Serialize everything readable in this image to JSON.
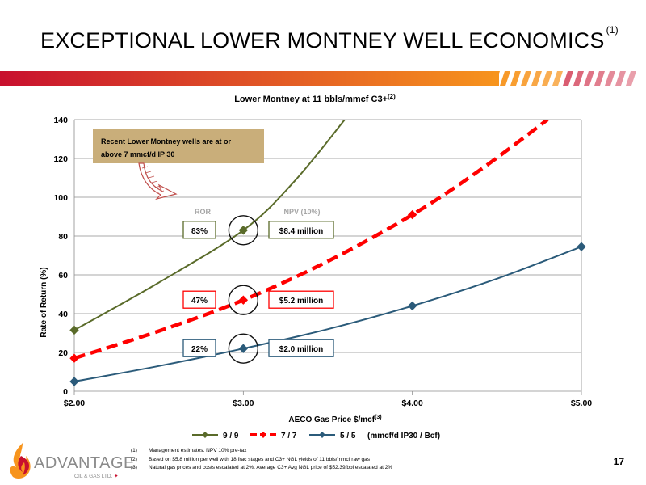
{
  "slide": {
    "title": "EXCEPTIONAL LOWER MONTNEY WELL ECONOMICS",
    "title_ref": "(1)",
    "page_number": "17"
  },
  "logo": {
    "name": "ADVANTAGE",
    "subtitle": "OIL & GAS LTD."
  },
  "colors": {
    "banner_start": "#c8102e",
    "banner_end": "#f7941d",
    "series_9_9": "#5a6b2a",
    "series_7_7": "#ff0000",
    "series_5_5": "#2b5b7a",
    "callout_fill": "#c9ae7a",
    "ror_label_color": "#a6a6a6"
  },
  "chart_data": {
    "type": "line",
    "title": "Lower Montney at 11 bbls/mmcf  C3+",
    "title_ref": "(2)",
    "xlabel": "AECO Gas Price $/mcf",
    "xlabel_ref": "(3)",
    "ylabel": "Rate of Return (%)",
    "xlim": [
      2.0,
      5.0
    ],
    "ylim": [
      0,
      140
    ],
    "x_ticks": [
      "$2.00",
      "$3.00",
      "$4.00",
      "$5.00"
    ],
    "x_tick_values": [
      2.0,
      3.0,
      4.0,
      5.0
    ],
    "y_ticks": [
      "0",
      "20",
      "40",
      "60",
      "80",
      "100",
      "120",
      "140"
    ],
    "y_tick_values": [
      0,
      20,
      40,
      60,
      80,
      100,
      120,
      140
    ],
    "grid": "horizontal",
    "legend_position": "bottom",
    "legend_suffix": "(mmcf/d IP30 / Bcf)",
    "series": [
      {
        "name": "9 / 9",
        "style": "solid-diamond",
        "points": [
          [
            2.0,
            31.5
          ],
          [
            3.0,
            83
          ]
        ],
        "curve": [
          [
            2.0,
            31.5
          ],
          [
            2.5,
            56
          ],
          [
            3.0,
            83
          ],
          [
            3.3,
            108
          ],
          [
            3.6,
            140
          ]
        ]
      },
      {
        "name": "7 / 7",
        "style": "dashed-diamond",
        "points": [
          [
            2.0,
            17
          ],
          [
            3.0,
            47
          ],
          [
            4.0,
            91
          ]
        ],
        "curve": [
          [
            2.0,
            17
          ],
          [
            2.5,
            31
          ],
          [
            3.0,
            47
          ],
          [
            3.5,
            67
          ],
          [
            4.0,
            91
          ],
          [
            4.4,
            114
          ],
          [
            4.8,
            140
          ]
        ]
      },
      {
        "name": "5 / 5",
        "style": "solid-diamond",
        "points": [
          [
            2.0,
            5
          ],
          [
            3.0,
            22
          ],
          [
            4.0,
            44
          ],
          [
            5.0,
            74.5
          ]
        ],
        "curve": [
          [
            2.0,
            5
          ],
          [
            2.5,
            13
          ],
          [
            3.0,
            22
          ],
          [
            3.5,
            32
          ],
          [
            4.0,
            44
          ],
          [
            4.5,
            58
          ],
          [
            5.0,
            74.5
          ]
        ]
      }
    ],
    "annotations": {
      "callout": "Recent Lower Montney wells are at or above 7 mmcf/d IP 30",
      "ror_header": "ROR",
      "npv_header": "NPV (10%)",
      "rows": [
        {
          "ror": "83%",
          "npv": "$8.4 million",
          "series": "9 / 9",
          "y": 83
        },
        {
          "ror": "47%",
          "npv": "$5.2 million",
          "series": "7 / 7",
          "y": 47
        },
        {
          "ror": "22%",
          "npv": "$2.0 million",
          "series": "5 / 5",
          "y": 22
        }
      ]
    }
  },
  "footnotes": [
    {
      "num": "(1)",
      "text": "Management estimates. NPV 10% pre-tax"
    },
    {
      "num": "(2)",
      "text": "Based on $5.8 million per well with 18 frac stages and C3+ NGL yields of 11 bbls/mmcf raw gas"
    },
    {
      "num": "(3)",
      "text": "Natural gas prices and costs escalated at 2%. Average C3+ Avg NGL price of $52.39/bbl escalated at 2%"
    }
  ]
}
